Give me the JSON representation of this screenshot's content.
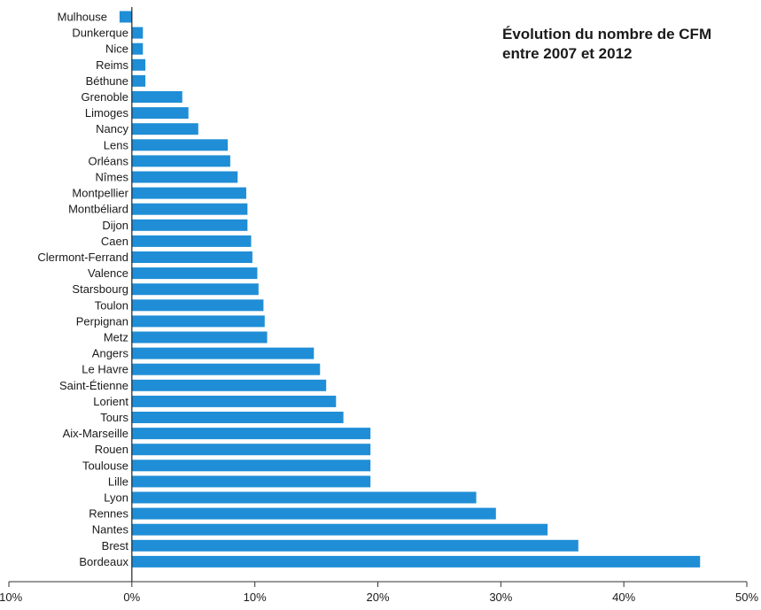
{
  "chart_data": {
    "type": "bar",
    "orientation": "horizontal",
    "title": "Évolution du nombre de CFM entre 2007 et 2012",
    "xlabel": "",
    "ylabel": "",
    "xlim": [
      -10,
      50
    ],
    "tick_values": [
      -10,
      0,
      10,
      20,
      30,
      40,
      50
    ],
    "tick_labels": [
      "-10%",
      "0%",
      "10%",
      "20%",
      "30%",
      "40%",
      "50%"
    ],
    "bar_color": "#1f8ed6",
    "grid": false,
    "categories": [
      "Mulhouse",
      "Dunkerque",
      "Nice",
      "Reims",
      "Béthune",
      "Grenoble",
      "Limoges",
      "Nancy",
      "Lens",
      "Orléans",
      "Nîmes",
      "Montpellier",
      "Montbéliard",
      "Dijon",
      "Caen",
      "Clermont-Ferrand",
      "Valence",
      "Starsbourg",
      "Toulon",
      "Perpignan",
      "Metz",
      "Angers",
      "Le Havre",
      "Saint-Étienne",
      "Lorient",
      "Tours",
      "Aix-Marseille",
      "Rouen",
      "Toulouse",
      "Lille",
      "Lyon",
      "Rennes",
      "Nantes",
      "Brest",
      "Bordeaux"
    ],
    "values": [
      -1.0,
      0.9,
      0.9,
      1.1,
      1.1,
      4.1,
      4.6,
      5.4,
      7.8,
      8.0,
      8.6,
      9.3,
      9.4,
      9.4,
      9.7,
      9.8,
      10.2,
      10.3,
      10.7,
      10.8,
      11.0,
      14.8,
      15.3,
      15.8,
      16.6,
      17.2,
      19.4,
      19.4,
      19.4,
      19.4,
      28.0,
      29.6,
      33.8,
      36.3,
      46.2
    ]
  }
}
